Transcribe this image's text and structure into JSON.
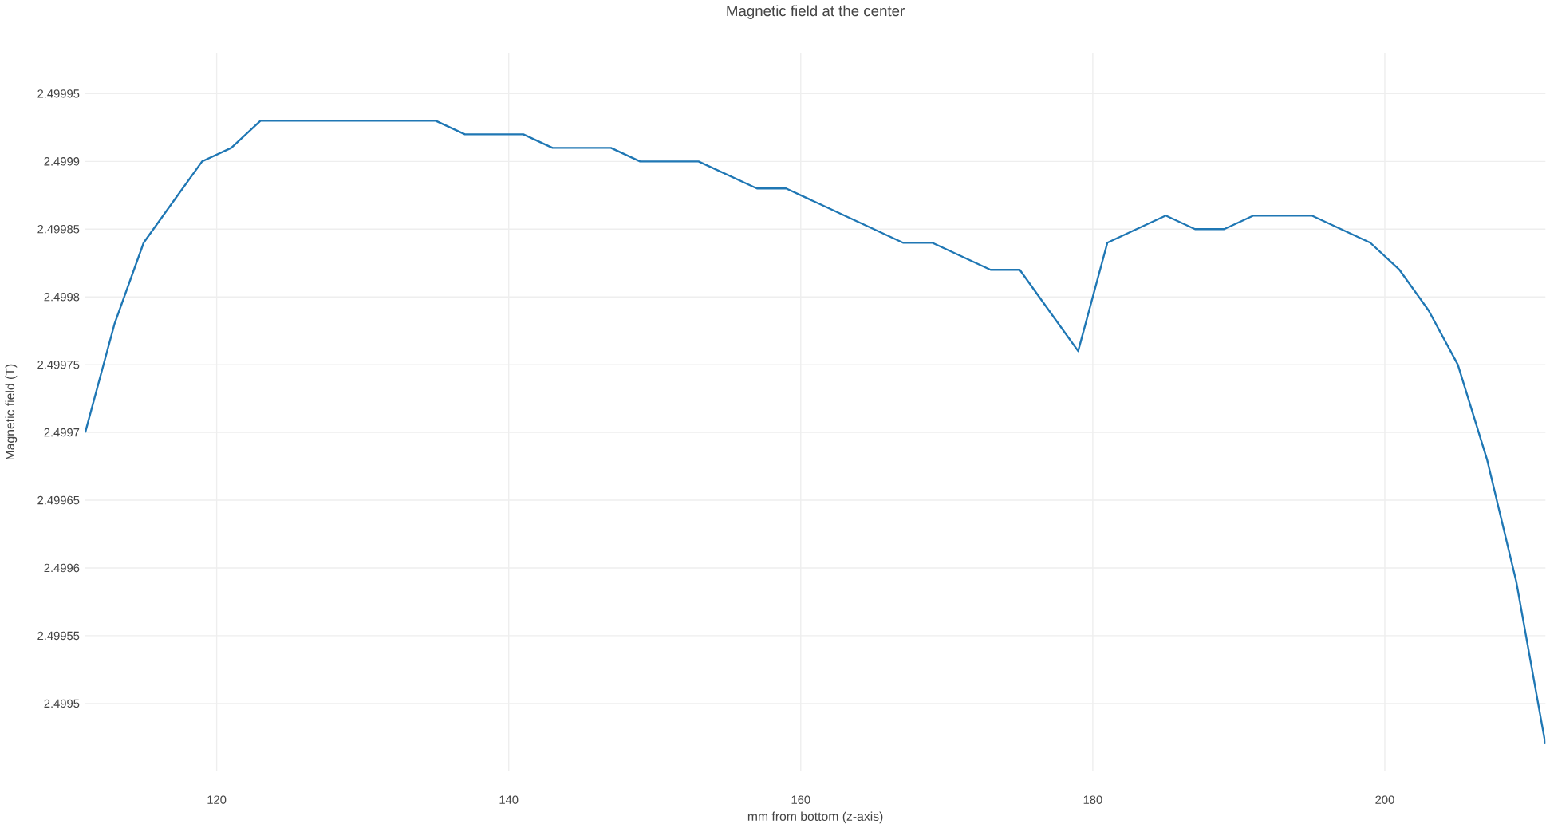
{
  "chart_data": {
    "type": "line",
    "title": "Magnetic field at the center",
    "xlabel": "mm from bottom (z-axis)",
    "ylabel": "Magnetic field (T)",
    "x": [
      111,
      113,
      115,
      117,
      119,
      121,
      123,
      125,
      127,
      129,
      131,
      133,
      135,
      137,
      139,
      141,
      143,
      145,
      147,
      149,
      151,
      153,
      155,
      157,
      159,
      161,
      163,
      165,
      167,
      169,
      171,
      173,
      175,
      177,
      179,
      181,
      183,
      185,
      187,
      189,
      191,
      193,
      195,
      197,
      199,
      201,
      203,
      205,
      207,
      209,
      211
    ],
    "series": [
      {
        "color": "#1f77b4",
        "values": [
          2.4997,
          2.49978,
          2.49984,
          2.49987,
          2.4999,
          2.49991,
          2.49993,
          2.49993,
          2.49993,
          2.49993,
          2.49993,
          2.49993,
          2.49993,
          2.49992,
          2.49992,
          2.49992,
          2.49991,
          2.49991,
          2.49991,
          2.4999,
          2.4999,
          2.4999,
          2.49989,
          2.49988,
          2.49988,
          2.49987,
          2.49986,
          2.49985,
          2.49984,
          2.49984,
          2.49983,
          2.49982,
          2.49982,
          2.49979,
          2.49976,
          2.49984,
          2.49985,
          2.49986,
          2.49985,
          2.49985,
          2.49986,
          2.49986,
          2.49986,
          2.49985,
          2.49984,
          2.49982,
          2.49979,
          2.49975,
          2.49968,
          2.49959,
          2.49947
        ]
      }
    ],
    "xlim": [
      111,
      211
    ],
    "ylim": [
      2.49945,
      2.49998
    ],
    "xticks": [
      120,
      140,
      160,
      180,
      200
    ],
    "yticks": [
      2.4995,
      2.49955,
      2.4996,
      2.49965,
      2.4997,
      2.49975,
      2.4998,
      2.49985,
      2.4999,
      2.49995
    ],
    "grid": true,
    "marker": "none",
    "line_style": "solid"
  }
}
